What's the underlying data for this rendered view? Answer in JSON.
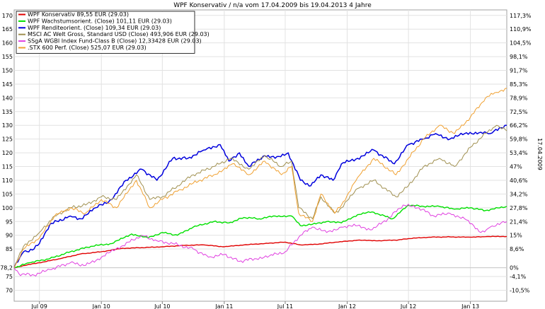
{
  "chart_data": {
    "type": "line",
    "title": "WPF Konservativ / n/a vom 17.04.2009 bis 19.04.2013 4 Jahre",
    "right_vertical_label": "17.04.2009",
    "x_range": [
      "2009-04-17",
      "2013-04-19"
    ],
    "ylim": [
      66,
      172
    ],
    "left_ticks": [
      {
        "value": 70,
        "label": "70"
      },
      {
        "value": 75,
        "label": "75"
      },
      {
        "value": 78.2,
        "label": "78,2"
      },
      {
        "value": 85,
        "label": "85"
      },
      {
        "value": 90,
        "label": "90"
      },
      {
        "value": 95,
        "label": "95"
      },
      {
        "value": 100,
        "label": "100"
      },
      {
        "value": 105,
        "label": "105"
      },
      {
        "value": 110,
        "label": "110"
      },
      {
        "value": 115,
        "label": "115"
      },
      {
        "value": 120,
        "label": "120"
      },
      {
        "value": 125,
        "label": "125"
      },
      {
        "value": 130,
        "label": "130"
      },
      {
        "value": 135,
        "label": "135"
      },
      {
        "value": 140,
        "label": "140"
      },
      {
        "value": 145,
        "label": "145"
      },
      {
        "value": 150,
        "label": "150"
      },
      {
        "value": 155,
        "label": "155"
      },
      {
        "value": 160,
        "label": "160"
      },
      {
        "value": 165,
        "label": "165"
      },
      {
        "value": 170,
        "label": "170"
      }
    ],
    "right_ticks": [
      {
        "value": 70,
        "label": "-10,5%"
      },
      {
        "value": 75,
        "label": "-4,1%"
      },
      {
        "value": 78.2,
        "label": "0%"
      },
      {
        "value": 85,
        "label": "8,6%"
      },
      {
        "value": 90,
        "label": "15%"
      },
      {
        "value": 95,
        "label": "21,4%"
      },
      {
        "value": 100,
        "label": "27,8%"
      },
      {
        "value": 105,
        "label": "34,2%"
      },
      {
        "value": 110,
        "label": "40,6%"
      },
      {
        "value": 115,
        "label": "47%"
      },
      {
        "value": 120,
        "label": "53,4%"
      },
      {
        "value": 125,
        "label": "59,8%"
      },
      {
        "value": 130,
        "label": "66,2%"
      },
      {
        "value": 135,
        "label": "72,5%"
      },
      {
        "value": 140,
        "label": "78,9%"
      },
      {
        "value": 145,
        "label": "85,3%"
      },
      {
        "value": 150,
        "label": "91,7%"
      },
      {
        "value": 155,
        "label": "98,1%"
      },
      {
        "value": 160,
        "label": "104,5%"
      },
      {
        "value": 165,
        "label": "110,9%"
      },
      {
        "value": 170,
        "label": "117,3%"
      }
    ],
    "x_ticks": [
      {
        "date": "2009-07-01",
        "label": "Jul 09"
      },
      {
        "date": "2010-01-01",
        "label": "Jan 10"
      },
      {
        "date": "2010-07-01",
        "label": "Jul 10"
      },
      {
        "date": "2011-01-01",
        "label": "Jan 11"
      },
      {
        "date": "2011-07-01",
        "label": "Jul 11"
      },
      {
        "date": "2012-01-01",
        "label": "Jan 12"
      },
      {
        "date": "2012-07-01",
        "label": "Jul 12"
      },
      {
        "date": "2013-01-01",
        "label": "Jan 13"
      }
    ],
    "grid": true,
    "legend_position": "top-left",
    "series": [
      {
        "name": "WPF Konservativ 89,55 EUR (29.03)",
        "color": "#e00000",
        "width": 1.4,
        "points": [
          [
            "2009-04-17",
            78.2
          ],
          [
            "2009-05-15",
            79.0
          ],
          [
            "2009-07-01",
            80.0
          ],
          [
            "2009-09-01",
            81.5
          ],
          [
            "2009-11-01",
            83.2
          ],
          [
            "2010-01-01",
            84.0
          ],
          [
            "2010-03-01",
            85.2
          ],
          [
            "2010-05-01",
            85.5
          ],
          [
            "2010-07-01",
            85.8
          ],
          [
            "2010-09-01",
            86.3
          ],
          [
            "2010-11-01",
            86.5
          ],
          [
            "2011-01-01",
            85.8
          ],
          [
            "2011-03-01",
            86.5
          ],
          [
            "2011-05-01",
            87.0
          ],
          [
            "2011-07-01",
            87.5
          ],
          [
            "2011-08-15",
            86.5
          ],
          [
            "2011-10-01",
            86.7
          ],
          [
            "2011-12-01",
            87.5
          ],
          [
            "2012-02-01",
            88.2
          ],
          [
            "2012-04-01",
            88.0
          ],
          [
            "2012-06-01",
            88.3
          ],
          [
            "2012-07-01",
            88.8
          ],
          [
            "2012-09-01",
            89.3
          ],
          [
            "2012-11-01",
            89.4
          ],
          [
            "2013-01-01",
            89.3
          ],
          [
            "2013-02-15",
            89.5
          ],
          [
            "2013-04-19",
            89.6
          ]
        ]
      },
      {
        "name": "WPF Wachstumsorient. (Close) 101,11 EUR (29.03)",
        "color": "#00e000",
        "width": 1.4,
        "points": [
          [
            "2009-04-17",
            78.2
          ],
          [
            "2009-06-01",
            80.0
          ],
          [
            "2009-08-01",
            81.5
          ],
          [
            "2009-10-01",
            84.0
          ],
          [
            "2009-12-01",
            86.0
          ],
          [
            "2010-02-01",
            87.0
          ],
          [
            "2010-04-01",
            90.5
          ],
          [
            "2010-05-20",
            89.0
          ],
          [
            "2010-07-01",
            91.0
          ],
          [
            "2010-08-15",
            90.0
          ],
          [
            "2010-10-01",
            93.0
          ],
          [
            "2010-12-01",
            95.0
          ],
          [
            "2011-01-15",
            94.5
          ],
          [
            "2011-03-01",
            96.5
          ],
          [
            "2011-04-15",
            96.0
          ],
          [
            "2011-06-01",
            97.0
          ],
          [
            "2011-07-20",
            97.0
          ],
          [
            "2011-08-15",
            93.5
          ],
          [
            "2011-09-20",
            94.0
          ],
          [
            "2011-11-01",
            95.0
          ],
          [
            "2011-12-15",
            94.5
          ],
          [
            "2012-02-01",
            97.5
          ],
          [
            "2012-03-15",
            98.5
          ],
          [
            "2012-05-15",
            96.0
          ],
          [
            "2012-07-01",
            101.0
          ],
          [
            "2012-08-15",
            100.5
          ],
          [
            "2012-10-01",
            100.5
          ],
          [
            "2012-11-15",
            99.5
          ],
          [
            "2013-01-01",
            100.0
          ],
          [
            "2013-02-15",
            99.0
          ],
          [
            "2013-04-19",
            100.5
          ]
        ]
      },
      {
        "name": "WPF Renditeorient. (Close) 109,34 EUR (29.03)",
        "color": "#0000dd",
        "width": 1.5,
        "points": [
          [
            "2009-04-17",
            78.2
          ],
          [
            "2009-05-15",
            84.0
          ],
          [
            "2009-06-15",
            85.0
          ],
          [
            "2009-07-01",
            87.0
          ],
          [
            "2009-08-01",
            94.0
          ],
          [
            "2009-10-01",
            97.0
          ],
          [
            "2009-11-01",
            96.0
          ],
          [
            "2009-12-15",
            100.0
          ],
          [
            "2010-02-01",
            103.0
          ],
          [
            "2010-03-15",
            110.0
          ],
          [
            "2010-05-01",
            114.0
          ],
          [
            "2010-06-15",
            110.0
          ],
          [
            "2010-08-01",
            118.0
          ],
          [
            "2010-09-15",
            118.0
          ],
          [
            "2010-11-01",
            121.0
          ],
          [
            "2010-12-20",
            123.0
          ],
          [
            "2011-01-15",
            117.0
          ],
          [
            "2011-02-15",
            120.0
          ],
          [
            "2011-03-15",
            115.0
          ],
          [
            "2011-05-01",
            119.0
          ],
          [
            "2011-06-01",
            118.0
          ],
          [
            "2011-07-10",
            120.0
          ],
          [
            "2011-08-15",
            110.0
          ],
          [
            "2011-09-15",
            108.0
          ],
          [
            "2011-10-15",
            112.0
          ],
          [
            "2011-11-20",
            110.0
          ],
          [
            "2011-12-15",
            116.0
          ],
          [
            "2012-02-01",
            118.0
          ],
          [
            "2012-03-20",
            121.0
          ],
          [
            "2012-05-20",
            116.0
          ],
          [
            "2012-07-01",
            123.0
          ],
          [
            "2012-08-15",
            125.0
          ],
          [
            "2012-09-20",
            127.0
          ],
          [
            "2012-11-01",
            125.0
          ],
          [
            "2012-12-15",
            127.0
          ],
          [
            "2013-02-01",
            127.5
          ],
          [
            "2013-03-01",
            127.0
          ],
          [
            "2013-04-19",
            130.0
          ]
        ]
      },
      {
        "name": "MSCI AC Welt Gross, Standard USD (Close) 493,906 EUR (29.03)",
        "color": "#a09050",
        "width": 1.0,
        "points": [
          [
            "2009-04-17",
            78.2
          ],
          [
            "2009-05-15",
            86.0
          ],
          [
            "2009-07-01",
            91.0
          ],
          [
            "2009-08-15",
            97.0
          ],
          [
            "2009-10-01",
            100.0
          ],
          [
            "2009-11-15",
            101.0
          ],
          [
            "2010-01-01",
            104.0
          ],
          [
            "2010-02-15",
            103.0
          ],
          [
            "2010-04-15",
            112.0
          ],
          [
            "2010-05-25",
            103.0
          ],
          [
            "2010-07-01",
            104.0
          ],
          [
            "2010-08-15",
            108.0
          ],
          [
            "2010-10-01",
            112.0
          ],
          [
            "2010-12-01",
            115.0
          ],
          [
            "2011-01-20",
            118.0
          ],
          [
            "2011-03-15",
            114.0
          ],
          [
            "2011-05-01",
            119.0
          ],
          [
            "2011-06-20",
            115.0
          ],
          [
            "2011-07-20",
            117.0
          ],
          [
            "2011-08-10",
            100.0
          ],
          [
            "2011-09-20",
            96.0
          ],
          [
            "2011-10-15",
            104.0
          ],
          [
            "2011-11-25",
            98.0
          ],
          [
            "2011-12-15",
            100.0
          ],
          [
            "2012-02-01",
            107.0
          ],
          [
            "2012-03-20",
            110.0
          ],
          [
            "2012-05-25",
            104.0
          ],
          [
            "2012-07-01",
            108.0
          ],
          [
            "2012-08-15",
            115.0
          ],
          [
            "2012-10-01",
            118.0
          ],
          [
            "2012-11-15",
            115.0
          ],
          [
            "2013-01-01",
            122.0
          ],
          [
            "2013-02-15",
            127.0
          ],
          [
            "2013-03-20",
            130.0
          ],
          [
            "2013-04-19",
            128.0
          ]
        ]
      },
      {
        "name": "SSgA WGBI Index Fund-Class B (Close) 12,33428 EUR (29.03)",
        "color": "#e040e0",
        "width": 1.0,
        "points": [
          [
            "2009-04-17",
            78.2
          ],
          [
            "2009-05-01",
            76.0
          ],
          [
            "2009-06-15",
            75.5
          ],
          [
            "2009-08-01",
            77.5
          ],
          [
            "2009-10-01",
            80.0
          ],
          [
            "2009-11-15",
            79.0
          ],
          [
            "2010-01-01",
            82.0
          ],
          [
            "2010-03-01",
            86.0
          ],
          [
            "2010-05-01",
            90.0
          ],
          [
            "2010-06-15",
            88.0
          ],
          [
            "2010-08-01",
            87.0
          ],
          [
            "2010-10-01",
            85.0
          ],
          [
            "2010-11-15",
            82.0
          ],
          [
            "2011-01-01",
            83.0
          ],
          [
            "2011-02-15",
            80.5
          ],
          [
            "2011-04-01",
            81.5
          ],
          [
            "2011-05-15",
            82.5
          ],
          [
            "2011-07-01",
            84.0
          ],
          [
            "2011-08-15",
            90.0
          ],
          [
            "2011-09-20",
            93.0
          ],
          [
            "2011-11-01",
            91.0
          ],
          [
            "2011-12-15",
            93.0
          ],
          [
            "2012-02-01",
            93.5
          ],
          [
            "2012-03-15",
            92.0
          ],
          [
            "2012-05-01",
            96.0
          ],
          [
            "2012-06-15",
            101.0
          ],
          [
            "2012-08-01",
            100.0
          ],
          [
            "2012-09-15",
            97.0
          ],
          [
            "2012-11-01",
            98.0
          ],
          [
            "2012-12-15",
            96.0
          ],
          [
            "2013-02-01",
            91.0
          ],
          [
            "2013-03-01",
            93.0
          ],
          [
            "2013-04-19",
            95.0
          ]
        ]
      },
      {
        "name": ".STX 600 Perf. (Close) 525,07 EUR (29.03)",
        "color": "#f0a030",
        "width": 1.0,
        "points": [
          [
            "2009-04-17",
            78.2
          ],
          [
            "2009-05-15",
            85.0
          ],
          [
            "2009-07-01",
            89.0
          ],
          [
            "2009-08-15",
            97.0
          ],
          [
            "2009-10-01",
            100.0
          ],
          [
            "2009-11-15",
            98.0
          ],
          [
            "2010-01-01",
            103.0
          ],
          [
            "2010-02-15",
            100.0
          ],
          [
            "2010-04-15",
            110.0
          ],
          [
            "2010-05-25",
            100.0
          ],
          [
            "2010-07-01",
            103.0
          ],
          [
            "2010-08-15",
            106.0
          ],
          [
            "2010-10-01",
            109.0
          ],
          [
            "2010-12-01",
            112.0
          ],
          [
            "2011-01-25",
            116.0
          ],
          [
            "2011-03-15",
            112.0
          ],
          [
            "2011-05-01",
            117.0
          ],
          [
            "2011-06-20",
            112.0
          ],
          [
            "2011-07-20",
            115.0
          ],
          [
            "2011-08-10",
            98.0
          ],
          [
            "2011-09-20",
            95.0
          ],
          [
            "2011-10-15",
            105.0
          ],
          [
            "2011-11-25",
            98.0
          ],
          [
            "2011-12-15",
            101.0
          ],
          [
            "2012-02-01",
            111.0
          ],
          [
            "2012-03-20",
            118.0
          ],
          [
            "2012-05-25",
            112.0
          ],
          [
            "2012-07-01",
            118.0
          ],
          [
            "2012-08-15",
            125.0
          ],
          [
            "2012-10-01",
            130.0
          ],
          [
            "2012-11-15",
            127.0
          ],
          [
            "2013-01-01",
            133.0
          ],
          [
            "2013-02-15",
            140.0
          ],
          [
            "2013-03-20",
            142.0
          ],
          [
            "2013-04-19",
            143.5
          ]
        ]
      }
    ]
  }
}
